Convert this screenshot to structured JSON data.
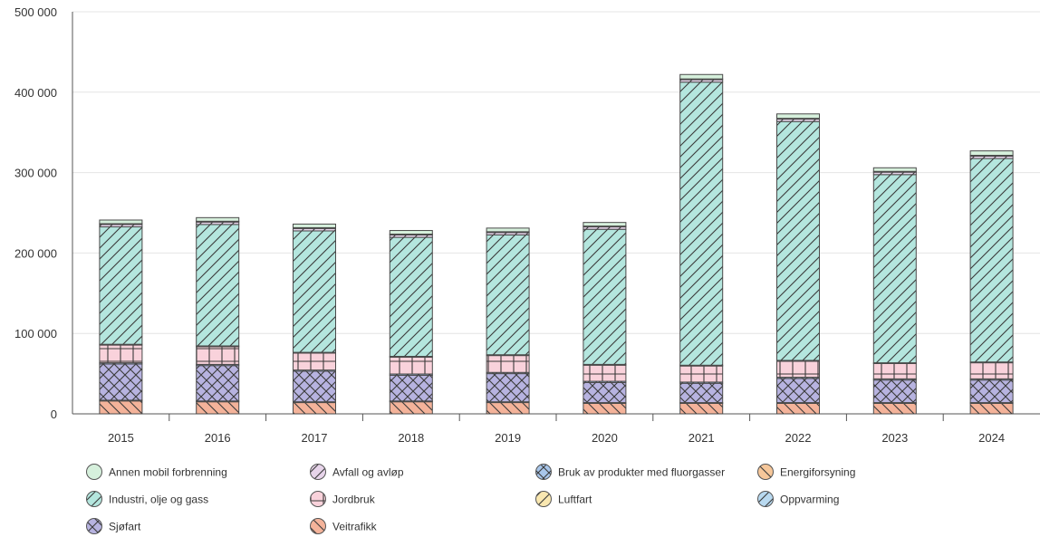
{
  "chart_data": {
    "type": "bar",
    "stacked": true,
    "title": "",
    "xlabel": "",
    "ylabel": "",
    "ylim": [
      0,
      500000
    ],
    "yticks": [
      0,
      100000,
      200000,
      300000,
      400000,
      500000
    ],
    "ytick_labels": [
      "0",
      "100 000",
      "200 000",
      "300 000",
      "400 000",
      "500 000"
    ],
    "grid": true,
    "legend_position": "bottom",
    "categories": [
      "2015",
      "2016",
      "2017",
      "2018",
      "2019",
      "2020",
      "2021",
      "2022",
      "2023",
      "2024"
    ],
    "series": [
      {
        "name": "Veitrafikk",
        "color": "#f4b39a",
        "pattern": "diag-down",
        "values": [
          16000,
          15000,
          14000,
          15000,
          14000,
          13000,
          13000,
          13000,
          13000,
          13000
        ]
      },
      {
        "name": "Energiforsyning",
        "color": "#f6c79a",
        "pattern": "diag-down",
        "values": [
          1000,
          1000,
          1000,
          1000,
          1000,
          1000,
          1000,
          1000,
          1000,
          1000
        ]
      },
      {
        "name": "Sjøfart",
        "color": "#b7b3e0",
        "pattern": "crosshatch",
        "values": [
          45000,
          44000,
          38000,
          32000,
          35000,
          25000,
          24000,
          30000,
          28000,
          28000
        ]
      },
      {
        "name": "Bruk av produkter med fluorgasser",
        "color": "#a8c6ea",
        "pattern": "crosshatch",
        "values": [
          1500,
          1500,
          1500,
          1500,
          1500,
          1500,
          1500,
          1500,
          1500,
          1500
        ]
      },
      {
        "name": "Jordbruk",
        "color": "#f9d2db",
        "pattern": "grid",
        "values": [
          22000,
          22000,
          21000,
          21000,
          21000,
          20000,
          20000,
          20000,
          19000,
          20000
        ]
      },
      {
        "name": "Oppvarming",
        "color": "#b8d9f0",
        "pattern": "diag-up",
        "values": [
          1000,
          1000,
          1000,
          1000,
          1000,
          1000,
          1000,
          1000,
          1000,
          1000
        ]
      },
      {
        "name": "Industri, olje og gass",
        "color": "#b4e6de",
        "pattern": "diag-up",
        "values": [
          146000,
          151000,
          151000,
          148000,
          149000,
          168000,
          352000,
          297000,
          234000,
          253000
        ]
      },
      {
        "name": "Avfall og avløp",
        "color": "#e7d4ea",
        "pattern": "diag-up",
        "values": [
          3000,
          3000,
          3000,
          3000,
          3000,
          3000,
          3000,
          3000,
          3000,
          3000
        ]
      },
      {
        "name": "Luftfart",
        "color": "#f9e7b0",
        "pattern": "diag-up",
        "values": [
          1000,
          1000,
          1000,
          1000,
          1000,
          1000,
          1000,
          1000,
          1000,
          1000
        ]
      },
      {
        "name": "Annen mobil forbrenning",
        "color": "#d6f0dc",
        "pattern": "none",
        "values": [
          4500,
          4500,
          4500,
          4500,
          4500,
          4500,
          5500,
          5500,
          4500,
          5500
        ]
      }
    ],
    "legend": [
      {
        "name": "Annen mobil forbrenning",
        "color": "#d6f0dc",
        "pattern": "none"
      },
      {
        "name": "Avfall og avløp",
        "color": "#e7d4ea",
        "pattern": "diag-up"
      },
      {
        "name": "Bruk av produkter med fluorgasser",
        "color": "#a8c6ea",
        "pattern": "crosshatch"
      },
      {
        "name": "Energiforsyning",
        "color": "#f6c79a",
        "pattern": "diag-down"
      },
      {
        "name": "Industri, olje og gass",
        "color": "#b4e6de",
        "pattern": "diag-up"
      },
      {
        "name": "Jordbruk",
        "color": "#f9d2db",
        "pattern": "grid"
      },
      {
        "name": "Luftfart",
        "color": "#f9e7b0",
        "pattern": "diag-up"
      },
      {
        "name": "Oppvarming",
        "color": "#b8d9f0",
        "pattern": "diag-up"
      },
      {
        "name": "Sjøfart",
        "color": "#b7b3e0",
        "pattern": "crosshatch"
      },
      {
        "name": "Veitrafikk",
        "color": "#f4b39a",
        "pattern": "diag-down"
      }
    ]
  }
}
